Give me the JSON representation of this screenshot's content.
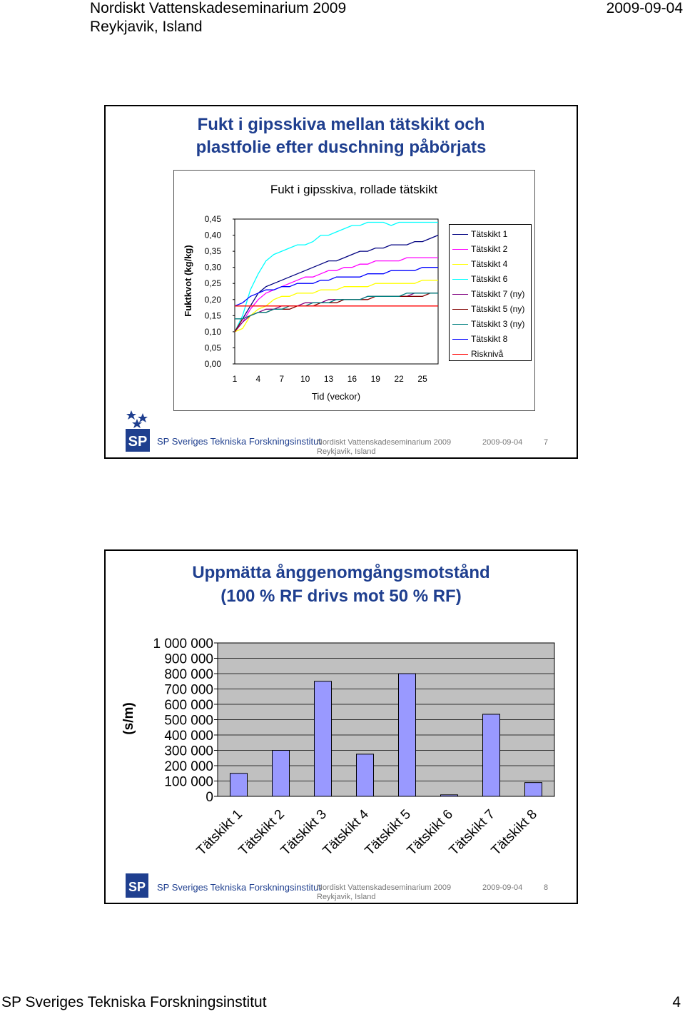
{
  "header": {
    "seminar": "Nordiskt Vattenskadeseminarium 2009",
    "location": "Reykjavik, Island",
    "date": "2009-09-04"
  },
  "slide1": {
    "title_line1": "Fukt i gipsskiva mellan tätskikt och",
    "title_line2": "plastfolie efter duschning påbörjats",
    "footer_seminar": "Nordiskt Vattenskadeseminarium 2009",
    "footer_location": "Reykjavik, Island",
    "footer_date": "2009-09-04",
    "page": "7"
  },
  "slide2": {
    "title_line1": "Uppmätta ånggenomgångsmotstånd",
    "title_line2": "(100 % RF drivs mot 50 % RF)",
    "footer_seminar": "Nordiskt Vattenskadeseminarium 2009",
    "footer_location": "Reykjavik, Island",
    "footer_date": "2009-09-04",
    "page": "8"
  },
  "logo": {
    "mark": "SP",
    "text": "SP Sveriges Tekniska Forskningsinstitut",
    "color": "#1f3f8f"
  },
  "footer": {
    "institute": "SP Sveriges Tekniska Forskningsinstitut",
    "page": "4"
  },
  "chart_data": [
    {
      "type": "line",
      "title": "Fukt i gipsskiva, rollade tätskikt",
      "xlabel": "Tid (veckor)",
      "ylabel": "Fuktkvot (kg/kg)",
      "x_ticks": [
        "1",
        "4",
        "7",
        "10",
        "13",
        "16",
        "19",
        "22",
        "25"
      ],
      "y_ticks": [
        "0,45",
        "0,40",
        "0,35",
        "0,30",
        "0,25",
        "0,20",
        "0,15",
        "0,10",
        "0,05",
        "0,00"
      ],
      "ylim": [
        0,
        0.45
      ],
      "xlim": [
        1,
        27
      ],
      "legend_position": "right",
      "series": [
        {
          "name": "Tätskikt 1",
          "color": "#000080",
          "values": [
            0.1,
            0.14,
            0.18,
            0.22,
            0.24,
            0.25,
            0.26,
            0.27,
            0.28,
            0.29,
            0.3,
            0.31,
            0.32,
            0.32,
            0.33,
            0.34,
            0.35,
            0.35,
            0.36,
            0.36,
            0.37,
            0.37,
            0.37,
            0.38,
            0.38,
            0.39,
            0.4
          ]
        },
        {
          "name": "Tätskikt 2",
          "color": "#ff00ff",
          "values": [
            0.1,
            0.13,
            0.17,
            0.2,
            0.22,
            0.23,
            0.24,
            0.25,
            0.26,
            0.27,
            0.27,
            0.28,
            0.29,
            0.29,
            0.3,
            0.3,
            0.31,
            0.31,
            0.32,
            0.32,
            0.32,
            0.32,
            0.33,
            0.33,
            0.33,
            0.33,
            0.33
          ]
        },
        {
          "name": "Tätskikt 4",
          "color": "#ffff00",
          "values": [
            0.1,
            0.11,
            0.15,
            0.17,
            0.18,
            0.2,
            0.21,
            0.21,
            0.22,
            0.22,
            0.22,
            0.23,
            0.23,
            0.23,
            0.24,
            0.24,
            0.24,
            0.24,
            0.25,
            0.25,
            0.25,
            0.25,
            0.25,
            0.25,
            0.26,
            0.26,
            0.26
          ]
        },
        {
          "name": "Tätskikt 6",
          "color": "#00ffff",
          "values": [
            0.1,
            0.15,
            0.23,
            0.28,
            0.32,
            0.34,
            0.35,
            0.36,
            0.37,
            0.37,
            0.38,
            0.4,
            0.4,
            0.41,
            0.42,
            0.43,
            0.43,
            0.44,
            0.44,
            0.44,
            0.43,
            0.44,
            0.44,
            0.44,
            0.44,
            0.44,
            0.44
          ]
        },
        {
          "name": "Tätskikt 7 (ny)",
          "color": "#800080",
          "values": [
            0.1,
            0.13,
            0.15,
            0.16,
            0.17,
            0.17,
            0.18,
            0.18,
            0.18,
            0.19,
            0.19,
            0.19,
            0.2,
            0.2,
            0.2,
            0.2,
            0.2,
            0.21,
            0.21,
            0.21,
            0.21,
            0.21,
            0.21,
            0.22,
            0.22,
            0.22,
            0.22
          ]
        },
        {
          "name": "Tätskikt 5 (ny)",
          "color": "#800000",
          "values": [
            0.1,
            0.14,
            0.15,
            0.16,
            0.16,
            0.17,
            0.17,
            0.17,
            0.18,
            0.18,
            0.18,
            0.19,
            0.19,
            0.19,
            0.2,
            0.2,
            0.2,
            0.2,
            0.21,
            0.21,
            0.21,
            0.21,
            0.21,
            0.21,
            0.21,
            0.22,
            0.22
          ]
        },
        {
          "name": "Tätskikt 3 (ny)",
          "color": "#008080",
          "values": [
            0.14,
            0.14,
            0.15,
            0.16,
            0.16,
            0.17,
            0.17,
            0.18,
            0.18,
            0.18,
            0.19,
            0.19,
            0.19,
            0.2,
            0.2,
            0.2,
            0.2,
            0.21,
            0.21,
            0.21,
            0.21,
            0.21,
            0.22,
            0.22,
            0.22,
            0.22,
            0.22
          ]
        },
        {
          "name": "Tätskikt 8",
          "color": "#0000ff",
          "values": [
            0.18,
            0.19,
            0.21,
            0.22,
            0.23,
            0.23,
            0.24,
            0.24,
            0.25,
            0.25,
            0.25,
            0.26,
            0.26,
            0.27,
            0.27,
            0.27,
            0.27,
            0.28,
            0.28,
            0.28,
            0.29,
            0.29,
            0.29,
            0.29,
            0.3,
            0.3,
            0.3
          ]
        },
        {
          "name": "Risknivå",
          "color": "#ff0000",
          "values": [
            0.18,
            0.18,
            0.18,
            0.18,
            0.18,
            0.18,
            0.18,
            0.18,
            0.18,
            0.18,
            0.18,
            0.18,
            0.18,
            0.18,
            0.18,
            0.18,
            0.18,
            0.18,
            0.18,
            0.18,
            0.18,
            0.18,
            0.18,
            0.18,
            0.18,
            0.18,
            0.18
          ]
        }
      ]
    },
    {
      "type": "bar",
      "ylabel": "(s/m)",
      "categories": [
        "Tätskikt 1",
        "Tätskikt 2",
        "Tätskikt 3",
        "Tätskikt 4",
        "Tätskikt 5",
        "Tätskikt 6",
        "Tätskikt 7",
        "Tätskikt 8"
      ],
      "values": [
        150000,
        300000,
        750000,
        275000,
        800000,
        10000,
        535000,
        90000
      ],
      "y_ticks": [
        "1 000 000",
        "900 000",
        "800 000",
        "700 000",
        "600 000",
        "500 000",
        "400 000",
        "300 000",
        "200 000",
        "100 000",
        "0"
      ],
      "ylim": [
        0,
        1000000
      ],
      "bar_color": "#9999ff",
      "plot_bg": "#c0c0c0",
      "grid": true
    }
  ]
}
